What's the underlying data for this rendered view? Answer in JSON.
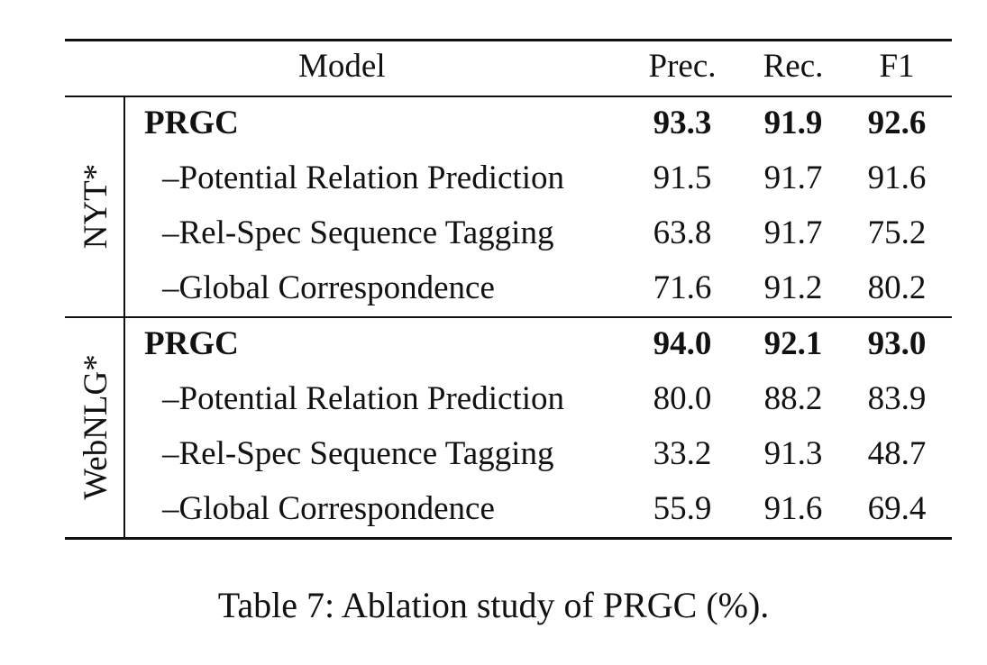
{
  "table": {
    "headers": {
      "model": "Model",
      "prec": "Prec.",
      "rec": "Rec.",
      "f1": "F1"
    },
    "groups": [
      {
        "label": "NYT*",
        "rows": [
          {
            "model": "PRGC",
            "prec": "93.3",
            "rec": "91.9",
            "f1": "92.6",
            "bold": true
          },
          {
            "model": "–Potential Relation Prediction",
            "prec": "91.5",
            "rec": "91.7",
            "f1": "91.6"
          },
          {
            "model": "–Rel-Spec Sequence Tagging",
            "prec": "63.8",
            "rec": "91.7",
            "f1": "75.2"
          },
          {
            "model": "–Global Correspondence",
            "prec": "71.6",
            "rec": "91.2",
            "f1": "80.2"
          }
        ]
      },
      {
        "label": "WebNLG*",
        "rows": [
          {
            "model": "PRGC",
            "prec": "94.0",
            "rec": "92.1",
            "f1": "93.0",
            "bold": true
          },
          {
            "model": "–Potential Relation Prediction",
            "prec": "80.0",
            "rec": "88.2",
            "f1": "83.9"
          },
          {
            "model": "–Rel-Spec Sequence Tagging",
            "prec": "33.2",
            "rec": "91.3",
            "f1": "48.7"
          },
          {
            "model": "–Global Correspondence",
            "prec": "55.9",
            "rec": "91.6",
            "f1": "69.4"
          }
        ]
      }
    ]
  },
  "caption": "Table 7: Ablation study of PRGC (%)."
}
